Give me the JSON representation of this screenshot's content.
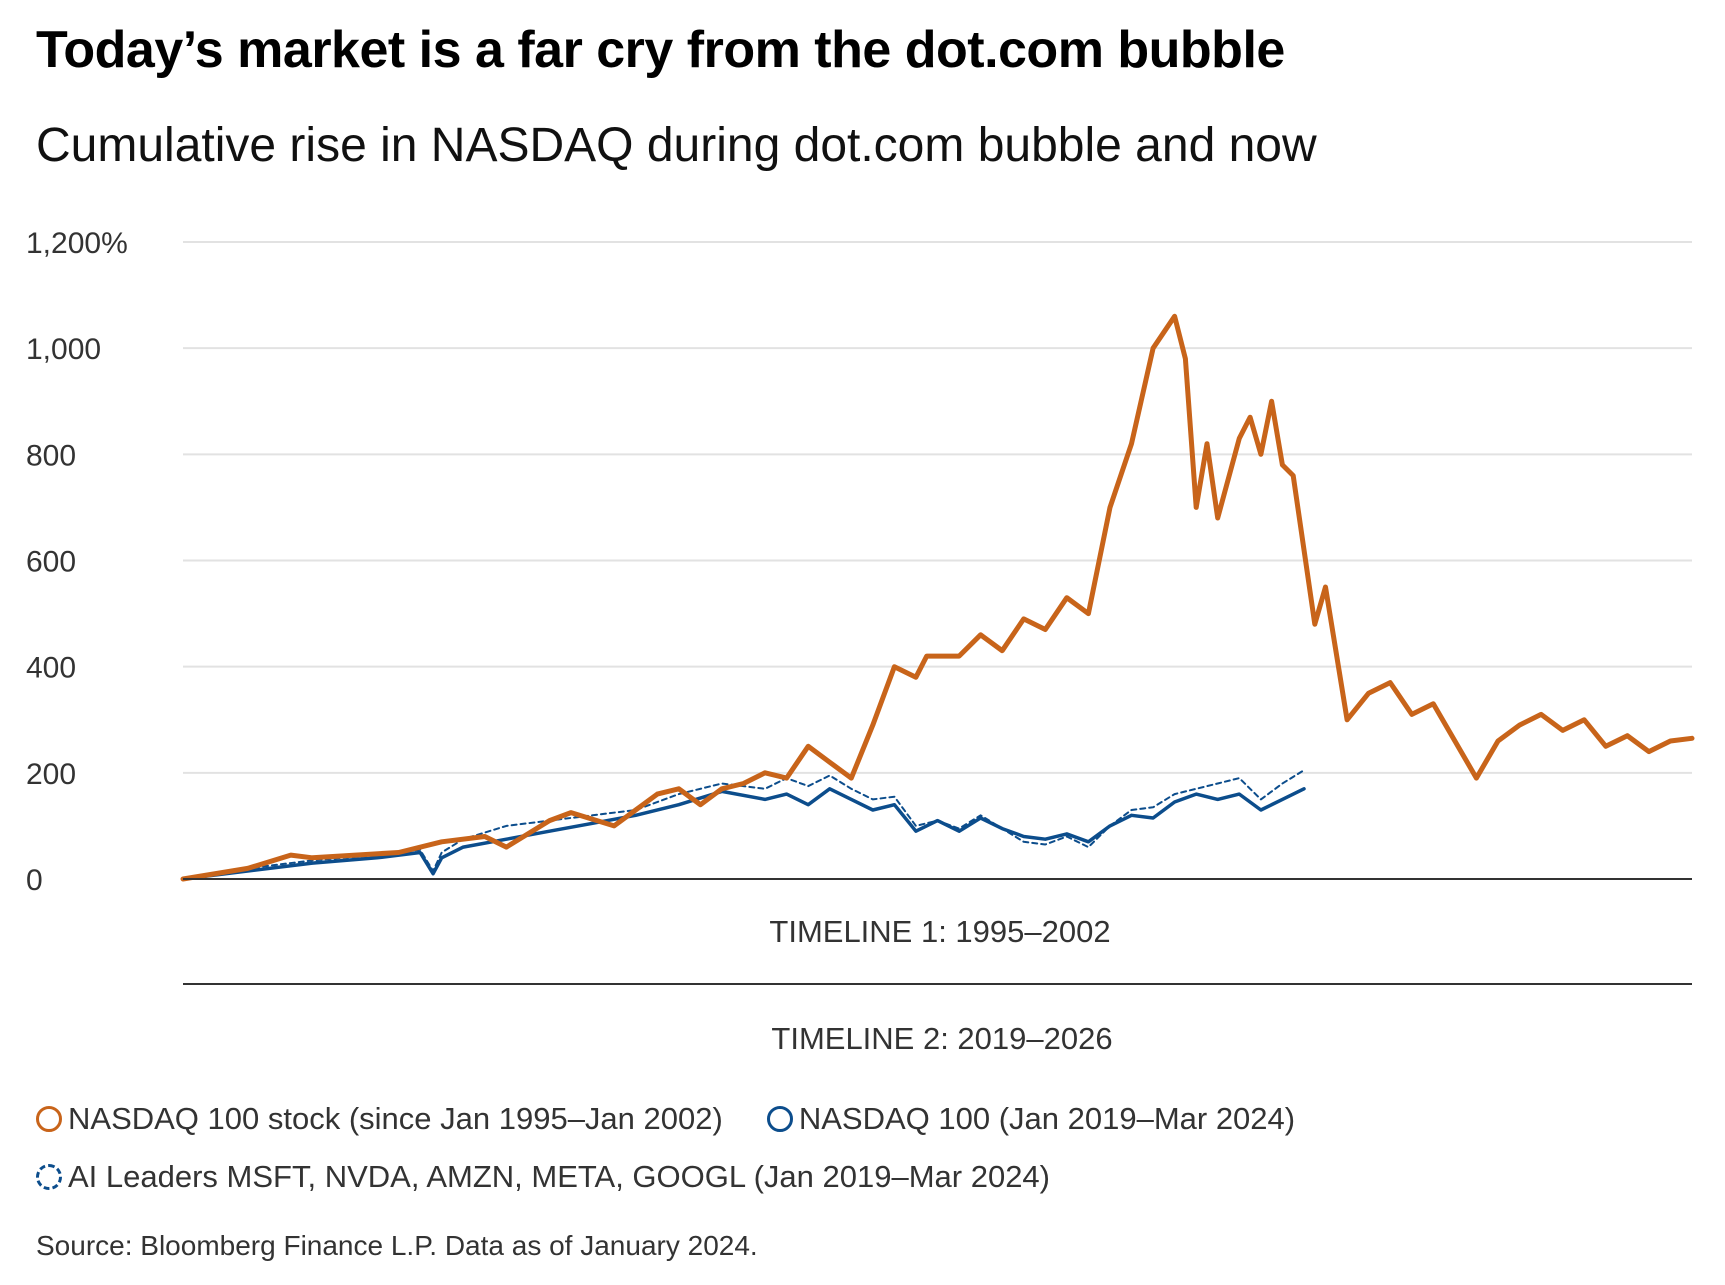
{
  "title": "Today’s market is a far cry from the dot.com bubble",
  "subtitle": "Cumulative rise in NASDAQ during dot.com bubble and now",
  "source": "Source: Bloomberg Finance L.P. Data as of January 2024.",
  "colors": {
    "orange": "#c8641a",
    "blue": "#0c4d8c",
    "grid": "#e2e2e2",
    "axis": "#333333"
  },
  "legend": [
    {
      "label": "NASDAQ 100 stock (since Jan 1995–Jan 2002)",
      "style": "solid",
      "color": "#c8641a"
    },
    {
      "label": "NASDAQ 100 (Jan 2019–Mar 2024)",
      "style": "solid",
      "color": "#0c4d8c"
    },
    {
      "label": "AI Leaders MSFT, NVDA, AMZN, META, GOOGL (Jan 2019–Mar 2024)",
      "style": "dashed",
      "color": "#0c4d8c"
    }
  ],
  "chart_data": {
    "type": "line",
    "title": "Cumulative rise in NASDAQ during dot.com bubble and now",
    "xlabel": "",
    "ylabel": "",
    "xlim": [
      0,
      7
    ],
    "ylim": [
      0,
      1200
    ],
    "y_ticks": [
      0,
      200,
      400,
      600,
      800,
      1000,
      1200
    ],
    "y_tick_labels": [
      "0",
      "200",
      "400",
      "600",
      "800",
      "1,000",
      "1,200%"
    ],
    "x_axis_labels": [
      "TIMELINE 1: 1995–2002",
      "TIMELINE 2: 2019–2026"
    ],
    "x_units": "years since start of timeline",
    "series": [
      {
        "name": "NASDAQ 100 stock (since Jan 1995–Jan 2002)",
        "style": "solid",
        "x": [
          0,
          0.3,
          0.5,
          0.6,
          0.8,
          1.0,
          1.2,
          1.4,
          1.5,
          1.6,
          1.7,
          1.8,
          2.0,
          2.2,
          2.3,
          2.4,
          2.5,
          2.6,
          2.7,
          2.8,
          2.9,
          3.0,
          3.1,
          3.2,
          3.3,
          3.4,
          3.45,
          3.5,
          3.6,
          3.7,
          3.8,
          3.9,
          4.0,
          4.1,
          4.2,
          4.3,
          4.4,
          4.5,
          4.6,
          4.65,
          4.7,
          4.75,
          4.8,
          4.9,
          4.95,
          5.0,
          5.05,
          5.1,
          5.15,
          5.2,
          5.25,
          5.3,
          5.4,
          5.5,
          5.6,
          5.7,
          5.8,
          5.9,
          6.0,
          6.1,
          6.2,
          6.3,
          6.4,
          6.5,
          6.6,
          6.7,
          6.8,
          6.9,
          7.0
        ],
        "values": [
          0,
          20,
          45,
          40,
          45,
          50,
          70,
          80,
          60,
          85,
          110,
          125,
          100,
          160,
          170,
          140,
          170,
          180,
          200,
          190,
          250,
          220,
          190,
          290,
          400,
          380,
          420,
          420,
          420,
          460,
          430,
          490,
          470,
          530,
          500,
          700,
          820,
          1000,
          1060,
          980,
          700,
          820,
          680,
          830,
          870,
          800,
          900,
          780,
          760,
          620,
          480,
          550,
          300,
          350,
          370,
          310,
          330,
          260,
          190,
          260,
          290,
          310,
          280,
          300,
          250,
          270,
          240,
          260,
          265
        ]
      },
      {
        "name": "NASDAQ 100 (Jan 2019–Mar 2024)",
        "style": "solid",
        "x": [
          0,
          0.3,
          0.6,
          0.9,
          1.1,
          1.16,
          1.2,
          1.3,
          1.5,
          1.7,
          1.9,
          2.1,
          2.3,
          2.5,
          2.7,
          2.8,
          2.9,
          3.0,
          3.1,
          3.2,
          3.3,
          3.4,
          3.5,
          3.6,
          3.7,
          3.8,
          3.9,
          4.0,
          4.1,
          4.2,
          4.3,
          4.4,
          4.5,
          4.6,
          4.7,
          4.8,
          4.9,
          5.0,
          5.1,
          5.2
        ],
        "values": [
          0,
          15,
          30,
          40,
          50,
          10,
          40,
          60,
          75,
          90,
          105,
          120,
          140,
          165,
          150,
          160,
          140,
          170,
          150,
          130,
          140,
          90,
          110,
          90,
          115,
          95,
          80,
          75,
          85,
          70,
          100,
          120,
          115,
          145,
          160,
          150,
          160,
          130,
          150,
          170
        ]
      },
      {
        "name": "AI Leaders MSFT, NVDA, AMZN, META, GOOGL (Jan 2019–Mar 2024)",
        "style": "dashed",
        "x": [
          0,
          0.3,
          0.6,
          0.9,
          1.1,
          1.16,
          1.2,
          1.3,
          1.5,
          1.7,
          1.9,
          2.1,
          2.3,
          2.5,
          2.7,
          2.8,
          2.9,
          3.0,
          3.1,
          3.2,
          3.3,
          3.4,
          3.5,
          3.6,
          3.7,
          3.8,
          3.9,
          4.0,
          4.1,
          4.2,
          4.3,
          4.4,
          4.5,
          4.6,
          4.7,
          4.8,
          4.9,
          5.0,
          5.1,
          5.2
        ],
        "values": [
          0,
          20,
          35,
          45,
          55,
          15,
          50,
          75,
          100,
          110,
          120,
          130,
          160,
          180,
          170,
          190,
          175,
          195,
          170,
          150,
          155,
          100,
          110,
          95,
          120,
          95,
          70,
          65,
          80,
          60,
          100,
          130,
          135,
          160,
          170,
          180,
          190,
          150,
          180,
          205
        ]
      }
    ]
  }
}
